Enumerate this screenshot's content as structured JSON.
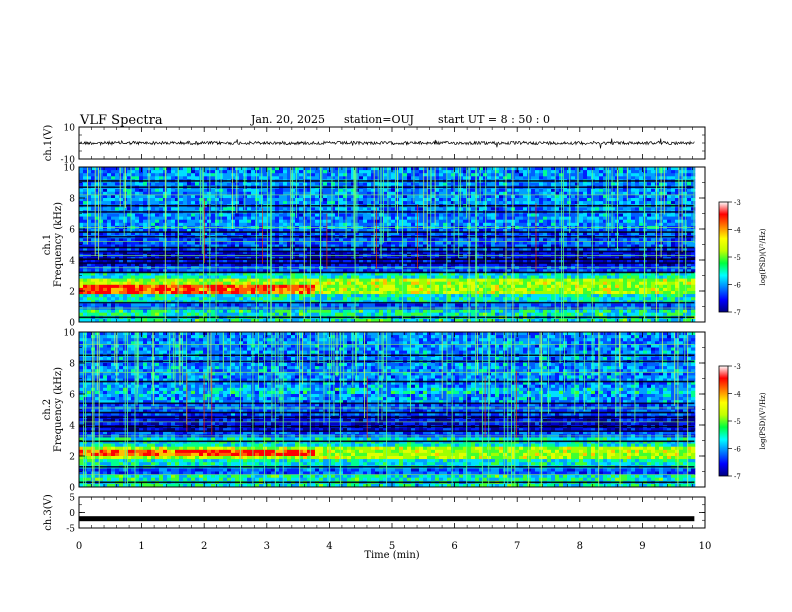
{
  "header": {
    "title": "VLF Spectra",
    "date": "Jan. 20, 2025",
    "station": "station=OUJ",
    "start_ut": "start UT =  8 : 50 : 0"
  },
  "colorbar": {
    "label": "log(PSD)(V²/Hz)",
    "ticks": [
      -3,
      -4,
      -5,
      -6,
      -7
    ],
    "colors": [
      "#000080",
      "#0000ff",
      "#0080ff",
      "#00ffff",
      "#00ff40",
      "#c0ff00",
      "#ffff00",
      "#ff8000",
      "#ff0000",
      "#ffffff"
    ]
  },
  "chart_data": [
    {
      "type": "line",
      "name": "ch1-waveform",
      "ylabel": "ch.1(V)",
      "ylim": [
        -10,
        10
      ],
      "yticks": [
        "10",
        "-10"
      ],
      "x_range_min": [
        0,
        9.83
      ],
      "baseline_level": 0,
      "noise_amplitude": 1
    },
    {
      "type": "heatmap",
      "name": "ch1-spectrogram",
      "ylabel": "ch.1 Frequency (kHz)",
      "ylim": [
        0,
        10
      ],
      "yticks": [
        "0",
        "2",
        "4",
        "6",
        "8",
        "10"
      ],
      "x_range_min": [
        0,
        9.83
      ],
      "intense_band_khz": [
        1.7,
        2.7
      ]
    },
    {
      "type": "heatmap",
      "name": "ch2-spectrogram",
      "ylabel": "ch.2 Frequency (kHz)",
      "ylim": [
        0,
        10
      ],
      "yticks": [
        "0",
        "2",
        "4",
        "6",
        "8",
        "10"
      ],
      "x_range_min": [
        0,
        9.83
      ],
      "intense_band_khz": [
        1.8,
        2.6
      ]
    },
    {
      "type": "line",
      "name": "ch3-waveform",
      "ylabel": "ch.3(V)",
      "ylim": [
        -5,
        5
      ],
      "yticks": [
        "5",
        "0",
        "-5"
      ],
      "x_range_min": [
        0,
        9.83
      ],
      "baseline_level": -2
    }
  ],
  "xaxis": {
    "label": "Time (min)",
    "range": [
      0,
      10
    ],
    "ticks": [
      "0",
      "1",
      "2",
      "3",
      "4",
      "5",
      "6",
      "7",
      "8",
      "9",
      "10"
    ]
  }
}
